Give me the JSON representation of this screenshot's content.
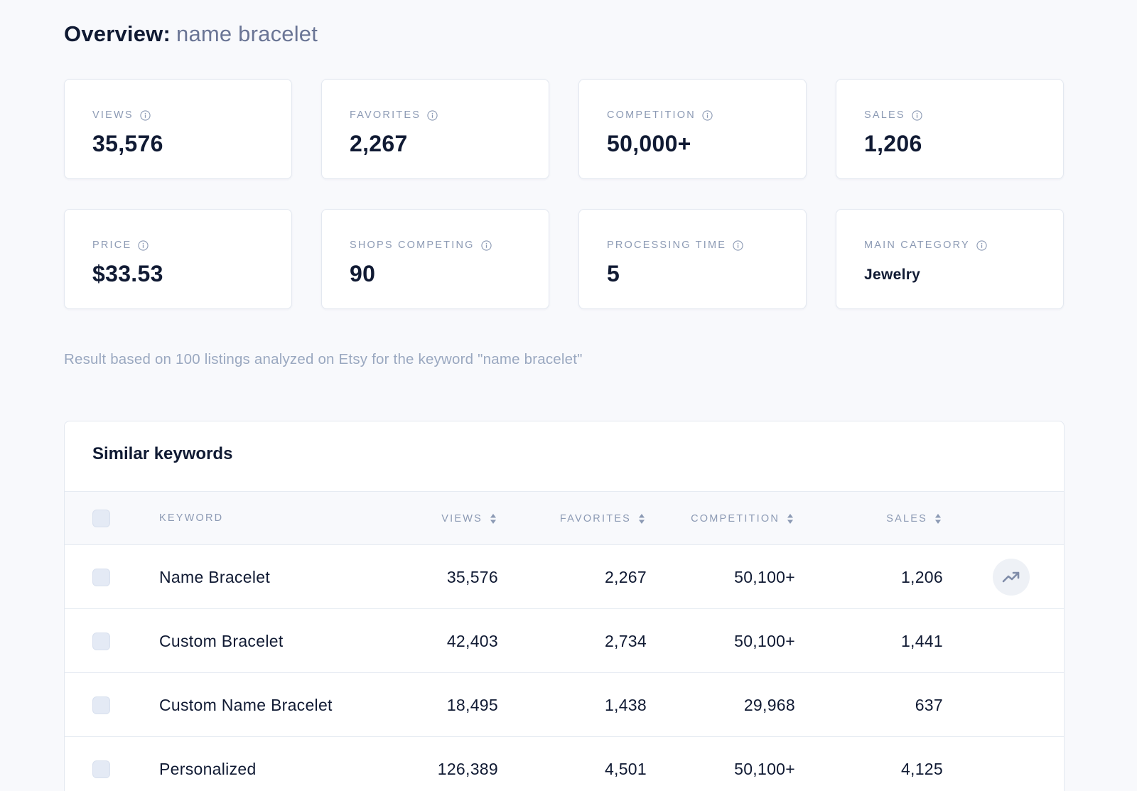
{
  "header": {
    "title_label": "Overview:",
    "query": "name bracelet"
  },
  "stats": [
    {
      "label": "VIEWS",
      "value": "35,576"
    },
    {
      "label": "FAVORITES",
      "value": "2,267"
    },
    {
      "label": "COMPETITION",
      "value": "50,000+"
    },
    {
      "label": "SALES",
      "value": "1,206"
    },
    {
      "label": "PRICE",
      "value": "$33.53"
    },
    {
      "label": "SHOPS COMPETING",
      "value": "90"
    },
    {
      "label": "PROCESSING TIME",
      "value": "5"
    },
    {
      "label": "MAIN CATEGORY",
      "value": "Jewelry"
    }
  ],
  "note": "Result based on 100 listings analyzed on Etsy for the keyword \"name bracelet\"",
  "similar": {
    "title": "Similar keywords",
    "columns": {
      "keyword": "KEYWORD",
      "views": "VIEWS",
      "favorites": "FAVORITES",
      "competition": "COMPETITION",
      "sales": "SALES"
    },
    "rows": [
      {
        "keyword": "Name Bracelet",
        "views": "35,576",
        "favorites": "2,267",
        "competition": "50,100+",
        "sales": "1,206"
      },
      {
        "keyword": "Custom Bracelet",
        "views": "42,403",
        "favorites": "2,734",
        "competition": "50,100+",
        "sales": "1,441"
      },
      {
        "keyword": "Custom Name Bracelet",
        "views": "18,495",
        "favorites": "1,438",
        "competition": "29,968",
        "sales": "637"
      },
      {
        "keyword": "Personalized",
        "views": "126,389",
        "favorites": "4,501",
        "competition": "50,100+",
        "sales": "4,125"
      }
    ]
  },
  "icons": {
    "info": "info-icon",
    "sort": "sort-icon",
    "trend": "trending-up-icon"
  },
  "colors": {
    "background": "#f8f9fc",
    "text_primary": "#101a33",
    "text_muted": "#8c9ab4",
    "checkbox": "#e4eaf5"
  }
}
